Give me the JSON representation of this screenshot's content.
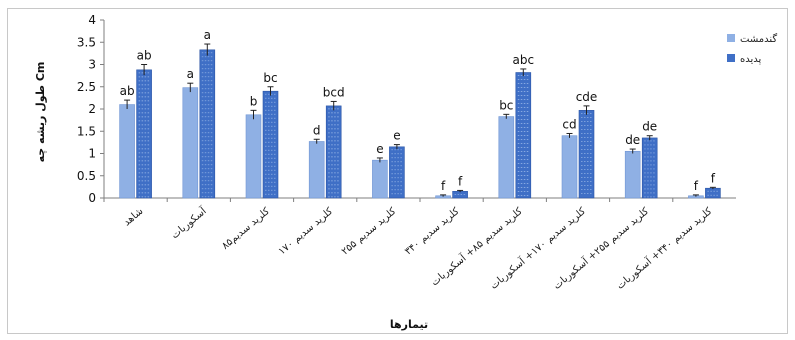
{
  "chart_data": {
    "type": "bar",
    "categories": [
      "شاهد",
      "آسکوربات",
      "کلرید سدیم۸۵",
      "کلرید سدیم ۱۷۰",
      "کلرید سدیم ۲۵۵",
      "کلرید سدیم ۳۴۰",
      "کلرید سدیم ۸۵+ آسکوربات",
      "کلرید سدیم ۱۷۰+ آسکوربات",
      "کلرید سدیم ۲۵۵+ آسکوربات",
      "کلرید سدیم ۳۴۰+ آسکوربات"
    ],
    "series": [
      {
        "name": "گندمشت",
        "color": "#8fb0e4",
        "values": [
          2.1,
          2.48,
          1.87,
          1.27,
          0.85,
          0.05,
          1.83,
          1.4,
          1.05,
          0.05
        ],
        "errors": [
          0.1,
          0.1,
          0.1,
          0.05,
          0.05,
          0.02,
          0.05,
          0.05,
          0.05,
          0.02
        ],
        "labels": [
          "ab",
          "a",
          "b",
          "d",
          "e",
          "f",
          "bc",
          "cd",
          "de",
          "f"
        ]
      },
      {
        "name": "پدیده",
        "color": "#3f6fc6",
        "values": [
          2.88,
          3.33,
          2.4,
          2.07,
          1.15,
          0.15,
          2.82,
          1.97,
          1.35,
          0.22
        ],
        "errors": [
          0.12,
          0.13,
          0.1,
          0.1,
          0.05,
          0.02,
          0.08,
          0.1,
          0.05,
          0.02
        ],
        "labels": [
          "ab",
          "a",
          "bc",
          "bcd",
          "e",
          "f",
          "abc",
          "cde",
          "de",
          "f"
        ]
      }
    ],
    "xlabel": "تیمارها",
    "ylabel": "طول ریشه چه Cm",
    "ylim": [
      0,
      4
    ],
    "yticks": [
      "0",
      "0.5",
      "1",
      "1.5",
      "2",
      "2.5",
      "3",
      "3.5",
      "4"
    ],
    "grid": false,
    "legend_position": "right"
  }
}
